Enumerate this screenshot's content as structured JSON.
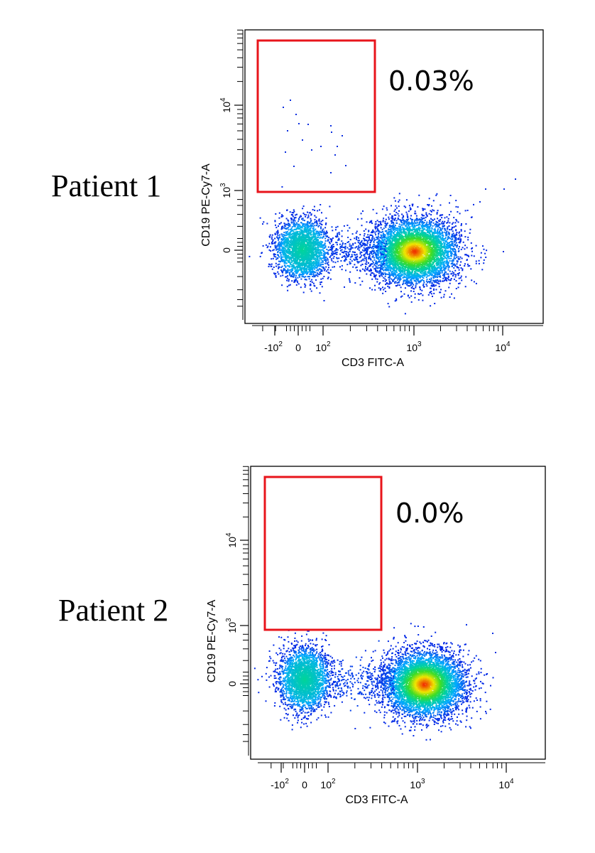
{
  "chart_data": [
    {
      "type": "scatter",
      "panel_label": "Patient 1",
      "xlabel": "CD3 FITC-A",
      "ylabel": "CD19 PE-Cy7-A",
      "x_scale": "biexponential",
      "y_scale": "biexponential",
      "x_ticks": [
        "-10^2",
        "0",
        "10^2",
        "10^3",
        "10^4"
      ],
      "y_ticks": [
        "0",
        "10^3",
        "10^4"
      ],
      "gate": {
        "label": "0.03%",
        "x_range": [
          -250,
          350
        ],
        "y_range": [
          1000,
          80000
        ],
        "color": "#e8141b"
      },
      "populations": [
        {
          "name": "",
          "center": [
            0,
            0
          ],
          "density": "medium"
        },
        {
          "name": "",
          "center": [
            1000,
            0
          ],
          "density": "high"
        }
      ],
      "gate_events": 16
    },
    {
      "type": "scatter",
      "panel_label": "Patient 2",
      "xlabel": "CD3 FITC-A",
      "ylabel": "CD19 PE-Cy7-A",
      "x_scale": "biexponential",
      "y_scale": "biexponential",
      "x_ticks": [
        "-10^2",
        "0",
        "10^2",
        "10^3",
        "10^4"
      ],
      "y_ticks": [
        "0",
        "10^3",
        "10^4"
      ],
      "gate": {
        "label": "0.0%",
        "x_range": [
          -250,
          350
        ],
        "y_range": [
          1000,
          80000
        ],
        "color": "#e8141b"
      },
      "populations": [
        {
          "name": "",
          "center": [
            0,
            0
          ],
          "density": "medium"
        },
        {
          "name": "",
          "center": [
            1300,
            0
          ],
          "density": "high"
        }
      ],
      "gate_events": 0
    }
  ]
}
